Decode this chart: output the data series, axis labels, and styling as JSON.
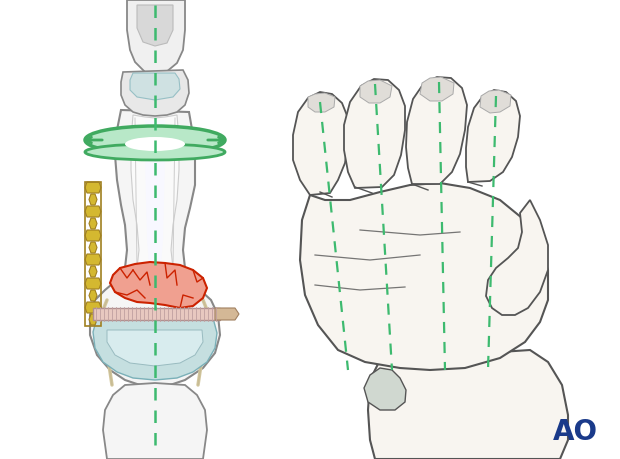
{
  "bg_color": "#ffffff",
  "ao_text": "AO",
  "ao_color": "#1a3a8a",
  "ao_fontsize": 20,
  "green_dashed_color": "#3dba6f",
  "bone_edge": "#888888",
  "bone_fill": "#f0f0f0",
  "skin_fill": "#e8e8e8",
  "cartilage_fill": "#c5dfe0",
  "cartilage_edge": "#7ab0b8",
  "fracture_fill": "#f0a090",
  "fracture_edge": "#cc2200",
  "plate_fill": "#e8c8c0",
  "plate_edge": "#b09090",
  "screw_fill": "#d4b896",
  "screw_edge": "#a08060",
  "lag_fill": "#d4b830",
  "lag_edge": "#a08020",
  "ring_fill": "#b8e8c8",
  "ring_edge": "#40aa60",
  "hand_edge": "#555555",
  "hand_fill": "#f8f5f0",
  "thumb_fill": "#d8d8cc",
  "wrist_bone_fill": "#d0d8d0"
}
